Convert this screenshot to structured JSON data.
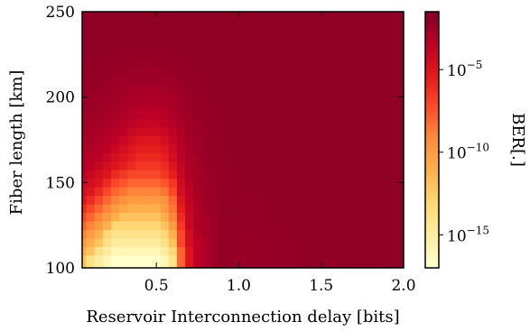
{
  "chart_data": {
    "type": "heatmap",
    "title": "",
    "xlabel": "Reservoir Interconnection delay [bits]",
    "ylabel": "Fiber length [km]",
    "xlim": [
      0.05,
      2.0
    ],
    "ylim": [
      100,
      250
    ],
    "x_ticks": [
      0.5,
      1.0,
      1.5,
      2.0
    ],
    "x_tick_labels": [
      "0.5",
      "1.0",
      "1.5",
      "2.0"
    ],
    "y_ticks": [
      100,
      150,
      200,
      250
    ],
    "y_tick_labels": [
      "100",
      "150",
      "200",
      "250"
    ],
    "x": [
      0.05,
      0.1,
      0.15,
      0.2,
      0.25,
      0.3,
      0.35,
      0.4,
      0.45,
      0.5,
      0.55,
      0.6,
      0.65,
      0.7,
      0.75,
      0.8,
      0.85,
      0.9,
      0.95,
      1.0,
      1.1,
      1.2,
      1.3,
      1.4,
      1.5,
      1.6,
      1.7,
      1.8,
      1.9,
      2.0
    ],
    "y": [
      100,
      105,
      110,
      115,
      120,
      125,
      130,
      135,
      140,
      145,
      150,
      155,
      160,
      165,
      170,
      175,
      180,
      185,
      190,
      195,
      200,
      205,
      210,
      215,
      220,
      225,
      230,
      235,
      240,
      245,
      250
    ],
    "z_log10": [
      [
        -12,
        -14,
        -15,
        -16,
        -17,
        -17,
        -17,
        -17,
        -17,
        -17,
        -16,
        -14,
        -8,
        -5,
        -3.5,
        -3,
        -2.5,
        -2.2,
        -2.1,
        -2.3,
        -2.3,
        -2.2,
        -2.2,
        -2.1,
        -2.1,
        -2.1,
        -2,
        -2,
        -2,
        -2
      ],
      [
        -12,
        -14,
        -15,
        -16,
        -17,
        -17,
        -17,
        -17,
        -17,
        -17,
        -16,
        -14,
        -8,
        -5,
        -3.5,
        -3,
        -2.5,
        -2.2,
        -2.1,
        -2.3,
        -2.3,
        -2.2,
        -2.2,
        -2.1,
        -2.1,
        -2.1,
        -2,
        -2,
        -2,
        -2
      ],
      [
        -11,
        -12,
        -14,
        -15,
        -16,
        -16,
        -16,
        -16,
        -16,
        -16,
        -15,
        -13,
        -8,
        -5,
        -3.5,
        -3,
        -2.5,
        -2.2,
        -2.1,
        -2.3,
        -2.3,
        -2.2,
        -2.2,
        -2.1,
        -2.1,
        -2.1,
        -2,
        -2,
        -2,
        -2
      ],
      [
        -10,
        -11,
        -12,
        -14,
        -15,
        -15,
        -15,
        -15,
        -15,
        -15,
        -14,
        -12,
        -7,
        -4.5,
        -3.5,
        -3,
        -2.5,
        -2.2,
        -2.1,
        -2.3,
        -2.3,
        -2.2,
        -2.2,
        -2.1,
        -2.1,
        -2.1,
        -2,
        -2,
        -2,
        -2
      ],
      [
        -9,
        -10,
        -11,
        -13,
        -14,
        -14,
        -14,
        -14,
        -14,
        -14,
        -13,
        -11,
        -7,
        -4.5,
        -3.2,
        -2.8,
        -2.5,
        -2.2,
        -2.1,
        -2.2,
        -2.2,
        -2.2,
        -2.1,
        -2.1,
        -2.1,
        -2,
        -2,
        -2,
        -2,
        -2
      ],
      [
        -8,
        -9,
        -10,
        -11,
        -13,
        -13,
        -13,
        -13,
        -13,
        -13,
        -12,
        -10,
        -6.5,
        -4,
        -3,
        -2.8,
        -2.5,
        -2.2,
        -2.1,
        -2.2,
        -2.2,
        -2.2,
        -2.1,
        -2.1,
        -2.1,
        -2,
        -2,
        -2,
        -2,
        -2
      ],
      [
        -7,
        -8,
        -9,
        -10,
        -11,
        -12,
        -12,
        -12,
        -12,
        -12,
        -11,
        -9,
        -6,
        -4,
        -3,
        -2.7,
        -2.4,
        -2.2,
        -2.1,
        -2.2,
        -2.2,
        -2.1,
        -2.1,
        -2.1,
        -2,
        -2,
        -2,
        -2,
        -2,
        -2
      ],
      [
        -6,
        -7,
        -8,
        -9,
        -10,
        -10.5,
        -11,
        -11,
        -11,
        -11,
        -10,
        -8.5,
        -5.5,
        -3.8,
        -3,
        -2.6,
        -2.4,
        -2.2,
        -2.1,
        -2.2,
        -2.2,
        -2.1,
        -2.1,
        -2.1,
        -2,
        -2,
        -2,
        -2,
        -2,
        -2
      ],
      [
        -5,
        -6,
        -7,
        -8,
        -9,
        -9.5,
        -10,
        -10,
        -10,
        -10,
        -9.5,
        -8,
        -5,
        -3.6,
        -2.9,
        -2.6,
        -2.4,
        -2.2,
        -2.1,
        -2.2,
        -2.2,
        -2.1,
        -2.1,
        -2,
        -2,
        -2,
        -2,
        -2,
        -2,
        -2
      ],
      [
        -4.5,
        -5,
        -6,
        -7,
        -8,
        -8.5,
        -9,
        -9,
        -9,
        -9,
        -8.5,
        -7,
        -4.5,
        -3.4,
        -2.8,
        -2.5,
        -2.3,
        -2.2,
        -2.1,
        -2.1,
        -2.1,
        -2.1,
        -2,
        -2,
        -2,
        -2,
        -2,
        -2,
        -2,
        -2
      ],
      [
        -4,
        -4.5,
        -5,
        -6,
        -7,
        -7.5,
        -8,
        -8,
        -8,
        -8,
        -7.5,
        -6.5,
        -4.2,
        -3.2,
        -2.7,
        -2.5,
        -2.3,
        -2.2,
        -2.1,
        -2.1,
        -2.1,
        -2,
        -2,
        -2,
        -2,
        -2,
        -2,
        -2,
        -2,
        -2
      ],
      [
        -3.5,
        -4,
        -4.5,
        -5,
        -6,
        -6.5,
        -7,
        -7,
        -7,
        -7,
        -6.5,
        -5.5,
        -4,
        -3,
        -2.7,
        -2.4,
        -2.3,
        -2.2,
        -2.1,
        -2.1,
        -2.1,
        -2,
        -2,
        -2,
        -2,
        -2,
        -2,
        -2,
        -2,
        -2
      ],
      [
        -3.2,
        -3.5,
        -4,
        -4.5,
        -5,
        -5.5,
        -6,
        -6.5,
        -6.5,
        -6.5,
        -6,
        -5,
        -3.8,
        -3,
        -2.6,
        -2.4,
        -2.3,
        -2.2,
        -2.1,
        -2.1,
        -2,
        -2,
        -2,
        -2,
        -2,
        -2,
        -2,
        -2,
        -2,
        -2
      ],
      [
        -3,
        -3.2,
        -3.5,
        -4,
        -4.5,
        -5,
        -5.5,
        -6,
        -6,
        -6,
        -5.5,
        -4.5,
        -3.5,
        -2.9,
        -2.6,
        -2.4,
        -2.2,
        -2.2,
        -2.1,
        -2.1,
        -2,
        -2,
        -2,
        -2,
        -2,
        -2,
        -2,
        -2,
        -2,
        -2
      ],
      [
        -2.8,
        -3,
        -3.2,
        -3.5,
        -4,
        -4.5,
        -5,
        -5.5,
        -5.5,
        -5.5,
        -5,
        -4.2,
        -3.3,
        -2.8,
        -2.5,
        -2.3,
        -2.2,
        -2.1,
        -2.1,
        -2.1,
        -2,
        -2,
        -2,
        -2,
        -2,
        -2,
        -2,
        -2,
        -2,
        -2
      ],
      [
        -2.7,
        -2.8,
        -3,
        -3.2,
        -3.5,
        -4,
        -4.5,
        -5,
        -5,
        -5,
        -4.5,
        -3.8,
        -3.1,
        -2.7,
        -2.5,
        -2.3,
        -2.2,
        -2.1,
        -2.1,
        -2,
        -2,
        -2,
        -2,
        -2,
        -2,
        -2,
        -2,
        -2,
        -2,
        -2
      ],
      [
        -2.6,
        -2.7,
        -2.8,
        -3,
        -3.2,
        -3.5,
        -4,
        -4.2,
        -4.3,
        -4.3,
        -4,
        -3.5,
        -3,
        -2.6,
        -2.4,
        -2.3,
        -2.2,
        -2.1,
        -2.1,
        -2,
        -2,
        -2,
        -2,
        -2,
        -2,
        -2,
        -2,
        -2,
        -2,
        -2
      ],
      [
        -2.5,
        -2.6,
        -2.7,
        -2.8,
        -3,
        -3.2,
        -3.5,
        -3.7,
        -3.8,
        -3.8,
        -3.6,
        -3.2,
        -2.8,
        -2.6,
        -2.4,
        -2.2,
        -2.2,
        -2.1,
        -2.1,
        -2,
        -2,
        -2,
        -2,
        -2,
        -2,
        -2,
        -2,
        -2,
        -2,
        -2
      ],
      [
        -2.4,
        -2.5,
        -2.6,
        -2.7,
        -2.8,
        -3,
        -3.2,
        -3.3,
        -3.4,
        -3.4,
        -3.2,
        -3,
        -2.7,
        -2.5,
        -2.3,
        -2.2,
        -2.2,
        -2.1,
        -2.1,
        -2,
        -2,
        -2,
        -2,
        -2,
        -2,
        -2,
        -2,
        -2,
        -2,
        -2
      ],
      [
        -2.3,
        -2.4,
        -2.5,
        -2.6,
        -2.7,
        -2.8,
        -3,
        -3.1,
        -3.1,
        -3.1,
        -3,
        -2.8,
        -2.6,
        -2.4,
        -2.3,
        -2.2,
        -2.1,
        -2.1,
        -2,
        -2,
        -2,
        -2,
        -2,
        -2,
        -2,
        -2,
        -2,
        -2,
        -2,
        -2
      ],
      [
        -2.2,
        -2.3,
        -2.4,
        -2.5,
        -2.6,
        -2.7,
        -2.8,
        -2.9,
        -2.9,
        -2.9,
        -2.8,
        -2.7,
        -2.5,
        -2.4,
        -2.3,
        -2.2,
        -2.1,
        -2.1,
        -2,
        -2,
        -2,
        -2,
        -2,
        -2,
        -2,
        -2,
        -2,
        -2,
        -2,
        -2
      ],
      [
        -2.2,
        -2.2,
        -2.3,
        -2.4,
        -2.5,
        -2.6,
        -2.7,
        -2.7,
        -2.7,
        -2.7,
        -2.6,
        -2.5,
        -2.4,
        -2.3,
        -2.2,
        -2.1,
        -2.1,
        -2,
        -2,
        -2,
        -2,
        -2,
        -2,
        -2,
        -2,
        -2,
        -2,
        -2,
        -2,
        -2
      ],
      [
        -2.1,
        -2.2,
        -2.2,
        -2.3,
        -2.4,
        -2.5,
        -2.5,
        -2.5,
        -2.5,
        -2.5,
        -2.5,
        -2.4,
        -2.3,
        -2.2,
        -2.2,
        -2.1,
        -2.1,
        -2,
        -2,
        -2,
        -2,
        -2,
        -2,
        -2,
        -2,
        -2,
        -2,
        -2,
        -2,
        -2
      ],
      [
        -2.1,
        -2.1,
        -2.2,
        -2.2,
        -2.3,
        -2.3,
        -2.4,
        -2.4,
        -2.4,
        -2.4,
        -2.3,
        -2.3,
        -2.2,
        -2.2,
        -2.1,
        -2.1,
        -2,
        -2,
        -2,
        -2,
        -2,
        -2,
        -2,
        -2,
        -2,
        -2,
        -2,
        -2,
        -2,
        -2
      ],
      [
        -2,
        -2.1,
        -2.1,
        -2.2,
        -2.2,
        -2.2,
        -2.3,
        -2.3,
        -2.3,
        -2.3,
        -2.2,
        -2.2,
        -2.2,
        -2.1,
        -2.1,
        -2.1,
        -2,
        -2,
        -2,
        -2,
        -2,
        -2,
        -2,
        -2,
        -2,
        -2,
        -2,
        -2,
        -2,
        -2
      ],
      [
        -2,
        -2,
        -2.1,
        -2.1,
        -2.1,
        -2.2,
        -2.2,
        -2.2,
        -2.2,
        -2.2,
        -2.2,
        -2.1,
        -2.1,
        -2.1,
        -2.1,
        -2,
        -2,
        -2,
        -2,
        -2,
        -2,
        -2,
        -2,
        -2,
        -2,
        -2,
        -2,
        -2,
        -2,
        -2
      ],
      [
        -2,
        -2,
        -2,
        -2.1,
        -2.1,
        -2.1,
        -2.1,
        -2.1,
        -2.1,
        -2.1,
        -2.1,
        -2.1,
        -2.1,
        -2,
        -2,
        -2,
        -2,
        -2,
        -2,
        -2,
        -2,
        -2,
        -2,
        -2,
        -2,
        -2,
        -2,
        -2,
        -2,
        -2
      ],
      [
        -2,
        -2,
        -2,
        -2,
        -2.1,
        -2.1,
        -2.1,
        -2.1,
        -2.1,
        -2.1,
        -2.1,
        -2,
        -2,
        -2,
        -2,
        -2,
        -2,
        -2,
        -2,
        -2,
        -2,
        -2,
        -2,
        -2,
        -2,
        -2,
        -2,
        -2,
        -2,
        -2
      ],
      [
        -2,
        -2,
        -2,
        -2,
        -2,
        -2,
        -2.1,
        -2.1,
        -2.1,
        -2.1,
        -2,
        -2,
        -2,
        -2,
        -2,
        -2,
        -2,
        -2,
        -2,
        -2,
        -2,
        -2,
        -2,
        -2,
        -2,
        -2,
        -2,
        -2,
        -2,
        -2
      ],
      [
        -2,
        -2,
        -2,
        -2,
        -2,
        -2,
        -2,
        -2,
        -2,
        -2,
        -2,
        -2,
        -2,
        -2,
        -2,
        -2,
        -2,
        -2,
        -2,
        -2,
        -2,
        -2,
        -2,
        -2,
        -2,
        -2,
        -2,
        -2,
        -2,
        -2
      ],
      [
        -2,
        -2,
        -2,
        -2,
        -2,
        -2,
        -2,
        -2,
        -2,
        -2,
        -2,
        -2,
        -2,
        -2,
        -2,
        -2,
        -2,
        -2,
        -2,
        -2,
        -2,
        -2,
        -2,
        -2,
        -2,
        -2,
        -2,
        -2,
        -2,
        -2
      ]
    ],
    "colorbar": {
      "label": "BER[.]",
      "scale": "log",
      "zlim_log10": [
        -17,
        -1.5
      ],
      "ticks_log10": [
        -15,
        -10,
        -5
      ],
      "tick_labels": [
        "10",
        "10",
        "10"
      ],
      "tick_exponents": [
        "−15",
        "−10",
        "−5"
      ],
      "colormap_stops": [
        "#ffffcc",
        "#ffeda0",
        "#fed976",
        "#feb24c",
        "#fd8d3c",
        "#fc4e2a",
        "#e31a1c",
        "#bd0026",
        "#800026"
      ]
    },
    "grid": false
  }
}
